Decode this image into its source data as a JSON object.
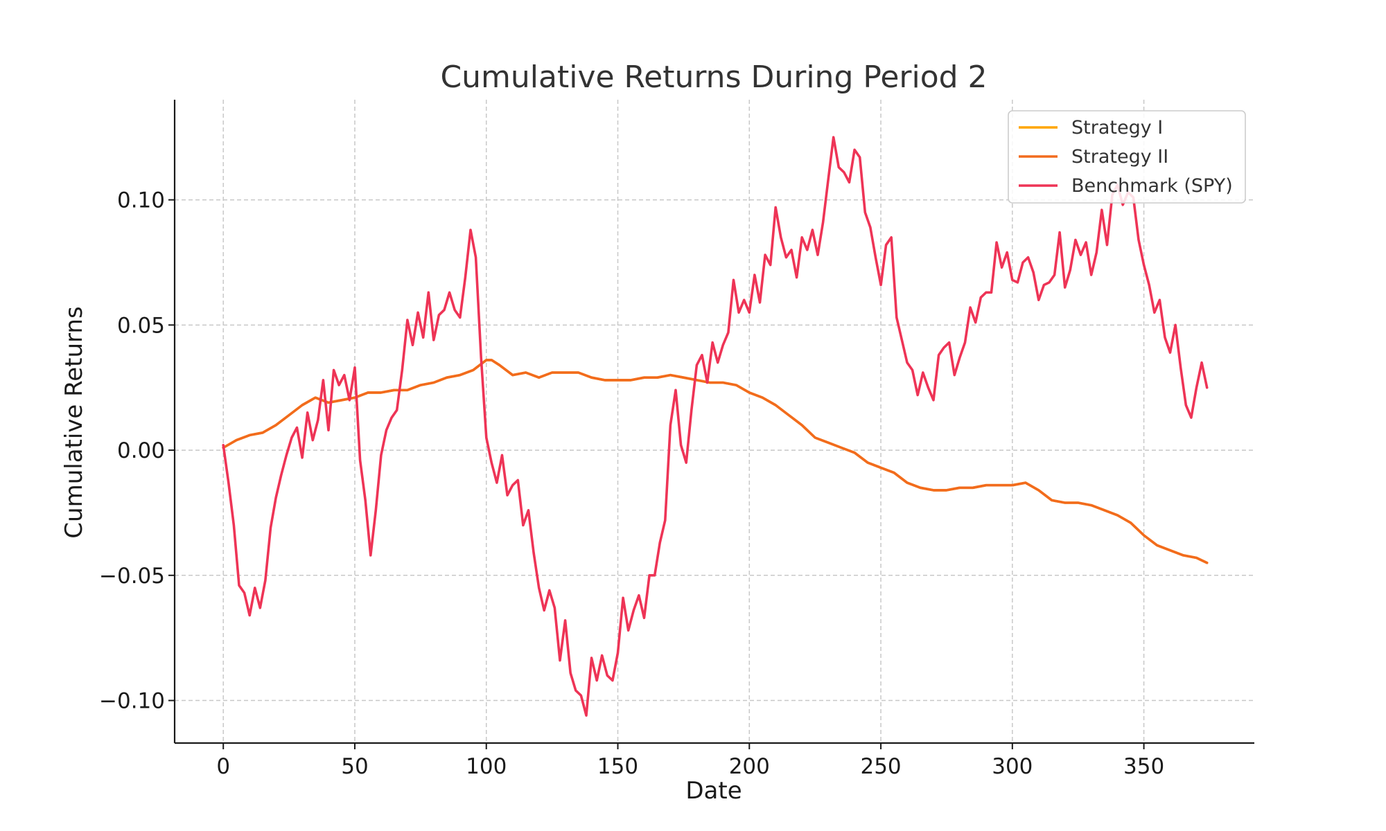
{
  "chart_data": {
    "type": "line",
    "title": "Cumulative Returns During Period 2",
    "xlabel": "Date",
    "ylabel": "Cumulative Returns",
    "xlim": [
      -18.5,
      392
    ],
    "ylim": [
      -0.117,
      0.14
    ],
    "x_ticks": [
      0,
      50,
      100,
      150,
      200,
      250,
      300,
      350
    ],
    "x_tick_labels": [
      "0",
      "50",
      "100",
      "150",
      "200",
      "250",
      "300",
      "350"
    ],
    "y_ticks": [
      0.1,
      0.05,
      0.0,
      -0.05,
      -0.1
    ],
    "y_tick_labels": [
      "0.10",
      "0.05",
      "0.00",
      "−0.05",
      "−0.10"
    ],
    "grid": true,
    "legend_position": "top-right",
    "series": [
      {
        "name": "Strategy I",
        "color": "#ffa500",
        "x": [
          0,
          5,
          10,
          15,
          20,
          25,
          30,
          35,
          40,
          45,
          50,
          55,
          60,
          65,
          70,
          75,
          80,
          85,
          90,
          95,
          100,
          102,
          105,
          110,
          115,
          120,
          125,
          130,
          135,
          140,
          145,
          150,
          155,
          160,
          165,
          170,
          175,
          180,
          185,
          190,
          195,
          200,
          205,
          210,
          215,
          220,
          225,
          230,
          235,
          240,
          245,
          250,
          255,
          260,
          265,
          270,
          275,
          280,
          285,
          290,
          295,
          300,
          305,
          310,
          315,
          320,
          325,
          330,
          335,
          340,
          345,
          350,
          355,
          360,
          365,
          370,
          374
        ],
        "y": [
          0.001,
          0.004,
          0.006,
          0.007,
          0.01,
          0.014,
          0.018,
          0.021,
          0.019,
          0.02,
          0.021,
          0.023,
          0.023,
          0.024,
          0.024,
          0.026,
          0.027,
          0.029,
          0.03,
          0.032,
          0.036,
          0.036,
          0.034,
          0.03,
          0.031,
          0.029,
          0.031,
          0.031,
          0.031,
          0.029,
          0.028,
          0.028,
          0.028,
          0.029,
          0.029,
          0.03,
          0.029,
          0.028,
          0.027,
          0.027,
          0.026,
          0.023,
          0.021,
          0.018,
          0.014,
          0.01,
          0.005,
          0.003,
          0.001,
          -0.001,
          -0.005,
          -0.007,
          -0.009,
          -0.013,
          -0.015,
          -0.016,
          -0.016,
          -0.015,
          -0.015,
          -0.014,
          -0.014,
          -0.014,
          -0.013,
          -0.016,
          -0.02,
          -0.021,
          -0.021,
          -0.022,
          -0.024,
          -0.026,
          -0.029,
          -0.034,
          -0.038,
          -0.04,
          -0.042,
          -0.043,
          -0.045
        ]
      },
      {
        "name": "Strategy II",
        "color": "#f26b1d",
        "x": [
          0,
          5,
          10,
          15,
          20,
          25,
          30,
          35,
          40,
          45,
          50,
          55,
          60,
          65,
          70,
          75,
          80,
          85,
          90,
          95,
          100,
          102,
          105,
          110,
          115,
          120,
          125,
          130,
          135,
          140,
          145,
          150,
          155,
          160,
          165,
          170,
          175,
          180,
          185,
          190,
          195,
          200,
          205,
          210,
          215,
          220,
          225,
          230,
          235,
          240,
          245,
          250,
          255,
          260,
          265,
          270,
          275,
          280,
          285,
          290,
          295,
          300,
          305,
          310,
          315,
          320,
          325,
          330,
          335,
          340,
          345,
          350,
          355,
          360,
          365,
          370,
          374
        ],
        "y": [
          0.001,
          0.004,
          0.006,
          0.007,
          0.01,
          0.014,
          0.018,
          0.021,
          0.019,
          0.02,
          0.021,
          0.023,
          0.023,
          0.024,
          0.024,
          0.026,
          0.027,
          0.029,
          0.03,
          0.032,
          0.036,
          0.036,
          0.034,
          0.03,
          0.031,
          0.029,
          0.031,
          0.031,
          0.031,
          0.029,
          0.028,
          0.028,
          0.028,
          0.029,
          0.029,
          0.03,
          0.029,
          0.028,
          0.027,
          0.027,
          0.026,
          0.023,
          0.021,
          0.018,
          0.014,
          0.01,
          0.005,
          0.003,
          0.001,
          -0.001,
          -0.005,
          -0.007,
          -0.009,
          -0.013,
          -0.015,
          -0.016,
          -0.016,
          -0.015,
          -0.015,
          -0.014,
          -0.014,
          -0.014,
          -0.013,
          -0.016,
          -0.02,
          -0.021,
          -0.021,
          -0.022,
          -0.024,
          -0.026,
          -0.029,
          -0.034,
          -0.038,
          -0.04,
          -0.042,
          -0.043,
          -0.045
        ]
      },
      {
        "name": "Benchmark (SPY)",
        "color": "#ee3456",
        "x": [
          0,
          2,
          4,
          6,
          8,
          10,
          12,
          14,
          16,
          18,
          20,
          22,
          24,
          26,
          28,
          30,
          32,
          34,
          36,
          38,
          40,
          42,
          44,
          46,
          48,
          50,
          52,
          54,
          56,
          58,
          60,
          62,
          64,
          66,
          68,
          70,
          72,
          74,
          76,
          78,
          80,
          82,
          84,
          86,
          88,
          90,
          92,
          94,
          96,
          98,
          100,
          102,
          104,
          106,
          108,
          110,
          112,
          114,
          116,
          118,
          120,
          122,
          124,
          126,
          128,
          130,
          132,
          134,
          136,
          138,
          140,
          142,
          144,
          146,
          148,
          150,
          152,
          154,
          156,
          158,
          160,
          162,
          164,
          166,
          168,
          170,
          172,
          174,
          176,
          178,
          180,
          182,
          184,
          186,
          188,
          190,
          192,
          194,
          196,
          198,
          200,
          202,
          204,
          206,
          208,
          210,
          212,
          214,
          216,
          218,
          220,
          222,
          224,
          226,
          228,
          230,
          232,
          234,
          236,
          238,
          240,
          242,
          244,
          246,
          248,
          250,
          252,
          254,
          256,
          258,
          260,
          262,
          264,
          266,
          268,
          270,
          272,
          274,
          276,
          278,
          280,
          282,
          284,
          286,
          288,
          290,
          292,
          294,
          296,
          298,
          300,
          302,
          304,
          306,
          308,
          310,
          312,
          314,
          316,
          318,
          320,
          322,
          324,
          326,
          328,
          330,
          332,
          334,
          336,
          338,
          340,
          342,
          344,
          346,
          348,
          350,
          352,
          354,
          356,
          358,
          360,
          362,
          364,
          366,
          368,
          370,
          372,
          374
        ],
        "y": [
          0.002,
          -0.013,
          -0.03,
          -0.054,
          -0.057,
          -0.066,
          -0.055,
          -0.063,
          -0.052,
          -0.031,
          -0.019,
          -0.01,
          -0.002,
          0.005,
          0.009,
          -0.003,
          0.015,
          0.004,
          0.012,
          0.028,
          0.008,
          0.032,
          0.026,
          0.03,
          0.02,
          0.033,
          -0.004,
          -0.02,
          -0.042,
          -0.024,
          -0.002,
          0.008,
          0.013,
          0.016,
          0.032,
          0.052,
          0.042,
          0.055,
          0.045,
          0.063,
          0.044,
          0.054,
          0.056,
          0.063,
          0.056,
          0.053,
          0.069,
          0.088,
          0.077,
          0.037,
          0.005,
          -0.005,
          -0.013,
          -0.002,
          -0.018,
          -0.014,
          -0.012,
          -0.03,
          -0.024,
          -0.041,
          -0.055,
          -0.064,
          -0.056,
          -0.063,
          -0.084,
          -0.068,
          -0.089,
          -0.096,
          -0.098,
          -0.106,
          -0.083,
          -0.092,
          -0.082,
          -0.09,
          -0.092,
          -0.081,
          -0.059,
          -0.072,
          -0.064,
          -0.058,
          -0.067,
          -0.05,
          -0.05,
          -0.037,
          -0.028,
          0.01,
          0.024,
          0.002,
          -0.005,
          0.016,
          0.034,
          0.038,
          0.027,
          0.043,
          0.035,
          0.042,
          0.047,
          0.068,
          0.055,
          0.06,
          0.055,
          0.07,
          0.059,
          0.078,
          0.074,
          0.097,
          0.085,
          0.077,
          0.08,
          0.069,
          0.085,
          0.08,
          0.088,
          0.078,
          0.091,
          0.108,
          0.125,
          0.113,
          0.111,
          0.107,
          0.12,
          0.117,
          0.095,
          0.089,
          0.077,
          0.066,
          0.082,
          0.085,
          0.053,
          0.044,
          0.035,
          0.032,
          0.022,
          0.031,
          0.025,
          0.02,
          0.038,
          0.041,
          0.043,
          0.03,
          0.037,
          0.043,
          0.057,
          0.051,
          0.061,
          0.063,
          0.063,
          0.083,
          0.073,
          0.079,
          0.068,
          0.067,
          0.075,
          0.077,
          0.071,
          0.06,
          0.066,
          0.067,
          0.07,
          0.087,
          0.065,
          0.072,
          0.084,
          0.078,
          0.083,
          0.07,
          0.079,
          0.096,
          0.082,
          0.102,
          0.106,
          0.098,
          0.103,
          0.101,
          0.084,
          0.074,
          0.066,
          0.055,
          0.06,
          0.045,
          0.039,
          0.05,
          0.033,
          0.018,
          0.013,
          0.025,
          0.035,
          0.025
        ]
      }
    ]
  }
}
